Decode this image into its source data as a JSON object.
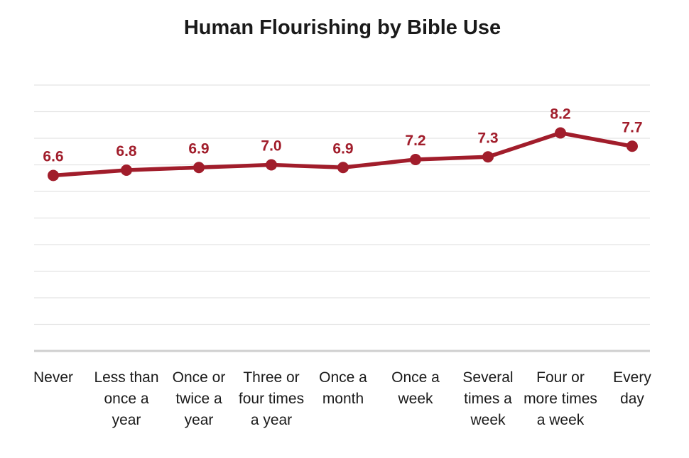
{
  "chart_data": {
    "type": "line",
    "title": "Human Flourishing by Bible Use",
    "xlabel": "",
    "ylabel": "",
    "categories": [
      "Never",
      "Less than once a year",
      "Once or twice a year",
      "Three or four times a year",
      "Once a month",
      "Once a week",
      "Several times a week",
      "Four or more times a week",
      "Every day"
    ],
    "category_lines": [
      [
        "Never"
      ],
      [
        "Less than",
        "once a",
        "year"
      ],
      [
        "Once or",
        "twice a",
        "year"
      ],
      [
        "Three or",
        "four times",
        "a year"
      ],
      [
        "Once a",
        "month"
      ],
      [
        "Once a",
        "week"
      ],
      [
        "Several",
        "times a",
        "week"
      ],
      [
        "Four or",
        "more times",
        "a week"
      ],
      [
        "Every",
        "day"
      ]
    ],
    "values": [
      6.6,
      6.8,
      6.9,
      7.0,
      6.9,
      7.2,
      7.3,
      8.2,
      7.7
    ],
    "data_labels": [
      "6.6",
      "6.8",
      "6.9",
      "7.0",
      "6.9",
      "7.2",
      "7.3",
      "8.2",
      "7.7"
    ],
    "ylim": [
      0,
      10
    ],
    "grid": true,
    "legend": "none",
    "colors": {
      "line": "#a11d2b",
      "label": "#a11d2b",
      "grid": "#e3e3e3",
      "baseline": "#cfcfcf",
      "text": "#1a1a1a"
    }
  }
}
